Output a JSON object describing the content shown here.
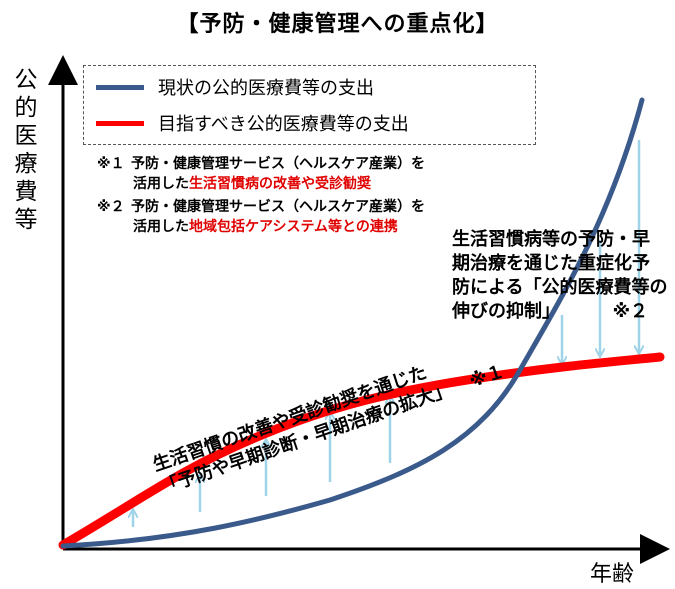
{
  "title": "【予防・健康管理への重点化】",
  "axes": {
    "y_label": "公的医療費等",
    "x_label": "年齢"
  },
  "legend": {
    "items": [
      {
        "label": "現状の公的医療費等の支出",
        "color": "#3b5a8c"
      },
      {
        "label": "目指すべき公的医療費等の支出",
        "color": "#ff0000"
      }
    ]
  },
  "notes": [
    {
      "mark": "※１",
      "line1": "予防・健康管理サービス（ヘルスケア産業）を",
      "line2_prefix": "活用した",
      "line2_highlight": "生活習慣病の改善や受診勧奨"
    },
    {
      "mark": "※２",
      "line1": "予防・健康管理サービス（ヘルスケア産業）を",
      "line2_prefix": "活用した",
      "line2_highlight": "地域包括ケアシステム等との連携"
    }
  ],
  "annotations": {
    "right": {
      "lines": [
        "生活習慣病等の予防・早",
        "期治療を通じた重症化予",
        "防による「公的医療費等の",
        "伸びの抑制」"
      ],
      "ref": "※２"
    },
    "left": {
      "lines": [
        "生活習慣の改善や受診勧奨を通じた",
        "「予防や早期診断・早期治療の拡大」"
      ],
      "ref": "※１"
    }
  },
  "colors": {
    "current_curve": "#3b5a8c",
    "target_curve": "#ff0000",
    "arrow": "#9fd3e8",
    "highlight": "#e00000"
  }
}
